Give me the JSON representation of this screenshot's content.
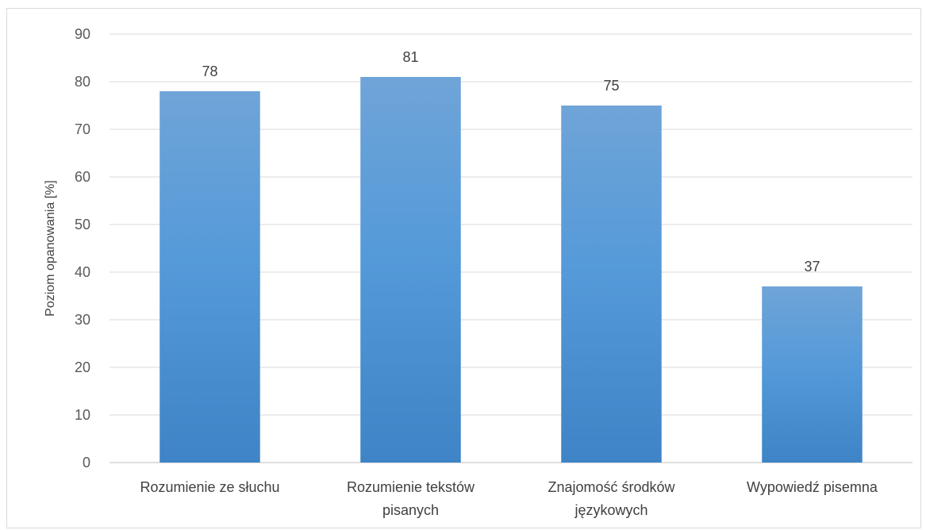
{
  "chart_data": {
    "type": "bar",
    "title": "",
    "xlabel": "",
    "ylabel": "Poziom opanowania [%]",
    "ylim": [
      0,
      90
    ],
    "y_ticks": [
      0,
      10,
      20,
      30,
      40,
      50,
      60,
      70,
      80,
      90
    ],
    "grid": true,
    "legend": "none",
    "categories": [
      [
        "Rozumienie ze słuchu"
      ],
      [
        "Rozumienie tekstów",
        "pisanych"
      ],
      [
        "Znajomość środków",
        "językowych"
      ],
      [
        "Wypowiedź pisemna"
      ]
    ],
    "values": [
      78,
      81,
      75,
      37
    ],
    "bar_color_top": "#6fa4d8",
    "bar_color_mid": "#559ad9",
    "bar_color_bottom": "#3e84c6",
    "grid_color": "#d9d9d9",
    "axis_color": "#bfbfbf"
  }
}
